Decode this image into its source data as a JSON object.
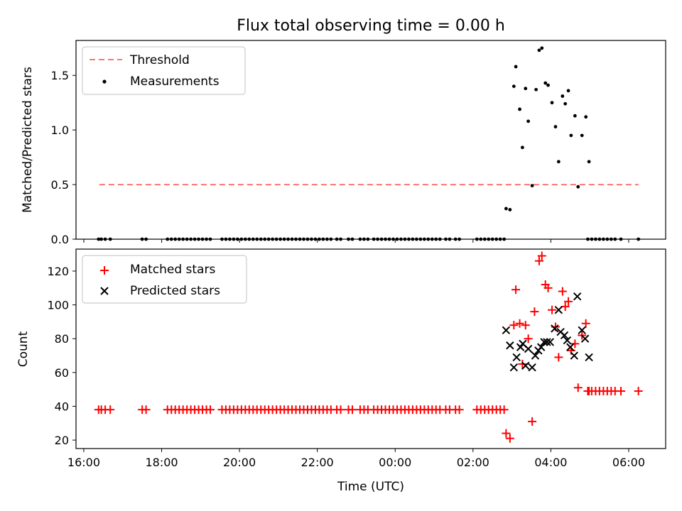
{
  "title": "Flux total observing time = 0.00 h",
  "xlabel": "Time (UTC)",
  "x_ticks": [
    "16:00",
    "18:00",
    "20:00",
    "22:00",
    "00:00",
    "02:00",
    "04:00",
    "06:00"
  ],
  "colors": {
    "threshold": "#ff7373",
    "measurement": "#000000",
    "matched": "#ff0000",
    "predicted": "#000000"
  },
  "chart_data": [
    {
      "type": "scatter",
      "panel": "top",
      "ylabel": "Matched/Predicted stars",
      "xlim_hours": [
        15.8,
        30.95
      ],
      "ylim": [
        0,
        1.82
      ],
      "y_ticks": [
        "0.0",
        "0.5",
        "1.0",
        "1.5"
      ],
      "legend": {
        "placement": "upper-left",
        "entries": [
          "Threshold",
          "Measurements"
        ]
      },
      "threshold": {
        "label": "Threshold",
        "value": 0.5,
        "x_start": 16.4,
        "x_end": 30.25
      },
      "zero_times": [
        16.38,
        16.45,
        16.55,
        16.68,
        17.5,
        17.6,
        18.15,
        18.25,
        18.35,
        18.45,
        18.55,
        18.65,
        18.75,
        18.85,
        18.95,
        19.05,
        19.15,
        19.25,
        19.55,
        19.65,
        19.75,
        19.85,
        19.95,
        20.05,
        20.15,
        20.25,
        20.35,
        20.45,
        20.55,
        20.65,
        20.75,
        20.85,
        20.95,
        21.05,
        21.15,
        21.25,
        21.35,
        21.45,
        21.55,
        21.65,
        21.75,
        21.85,
        21.95,
        22.05,
        22.15,
        22.25,
        22.35,
        22.5,
        22.6,
        22.8,
        22.9,
        23.1,
        23.2,
        23.3,
        23.45,
        23.55,
        23.65,
        23.75,
        23.85,
        23.95,
        24.05,
        24.15,
        24.25,
        24.35,
        24.45,
        24.55,
        24.65,
        24.75,
        24.85,
        24.95,
        25.05,
        25.15,
        25.3,
        25.4,
        25.55,
        25.65,
        26.1,
        26.2,
        26.3,
        26.4,
        26.5,
        26.6,
        26.7,
        26.8,
        28.95,
        29.05,
        29.15,
        29.25,
        29.35,
        29.45,
        29.55,
        29.65,
        29.8,
        30.25
      ],
      "measurements": [
        {
          "t": 26.85,
          "v": 0.28
        },
        {
          "t": 26.95,
          "v": 0.27
        },
        {
          "t": 27.05,
          "v": 1.4
        },
        {
          "t": 27.1,
          "v": 1.58
        },
        {
          "t": 27.2,
          "v": 1.19
        },
        {
          "t": 27.27,
          "v": 0.84
        },
        {
          "t": 27.35,
          "v": 1.38
        },
        {
          "t": 27.42,
          "v": 1.08
        },
        {
          "t": 27.52,
          "v": 0.49
        },
        {
          "t": 27.62,
          "v": 1.37
        },
        {
          "t": 27.7,
          "v": 1.73
        },
        {
          "t": 27.77,
          "v": 1.75
        },
        {
          "t": 27.86,
          "v": 1.43
        },
        {
          "t": 27.93,
          "v": 1.41
        },
        {
          "t": 28.03,
          "v": 1.25
        },
        {
          "t": 28.12,
          "v": 1.03
        },
        {
          "t": 28.2,
          "v": 0.71
        },
        {
          "t": 28.3,
          "v": 1.31
        },
        {
          "t": 28.37,
          "v": 1.24
        },
        {
          "t": 28.45,
          "v": 1.36
        },
        {
          "t": 28.52,
          "v": 0.95
        },
        {
          "t": 28.62,
          "v": 1.13
        },
        {
          "t": 28.7,
          "v": 0.48
        },
        {
          "t": 28.8,
          "v": 0.95
        },
        {
          "t": 28.9,
          "v": 1.12
        },
        {
          "t": 28.98,
          "v": 0.71
        }
      ]
    },
    {
      "type": "scatter",
      "panel": "bottom",
      "ylabel": "Count",
      "xlim_hours": [
        15.8,
        30.95
      ],
      "ylim": [
        15,
        133
      ],
      "y_ticks": [
        "20",
        "40",
        "60",
        "80",
        "100",
        "120"
      ],
      "legend": {
        "placement": "upper-left",
        "entries": [
          "Matched stars",
          "Predicted stars"
        ]
      },
      "baseline_count": 38,
      "baseline_times": [
        16.38,
        16.45,
        16.55,
        16.68,
        17.5,
        17.6,
        18.15,
        18.25,
        18.35,
        18.45,
        18.55,
        18.65,
        18.75,
        18.85,
        18.95,
        19.05,
        19.15,
        19.25,
        19.55,
        19.65,
        19.75,
        19.85,
        19.95,
        20.05,
        20.15,
        20.25,
        20.35,
        20.45,
        20.55,
        20.65,
        20.75,
        20.85,
        20.95,
        21.05,
        21.15,
        21.25,
        21.35,
        21.45,
        21.55,
        21.65,
        21.75,
        21.85,
        21.95,
        22.05,
        22.15,
        22.25,
        22.35,
        22.5,
        22.6,
        22.8,
        22.9,
        23.1,
        23.2,
        23.3,
        23.45,
        23.55,
        23.65,
        23.75,
        23.85,
        23.95,
        24.05,
        24.15,
        24.25,
        24.35,
        24.45,
        24.55,
        24.65,
        24.75,
        24.85,
        24.95,
        25.05,
        25.15,
        25.3,
        25.4,
        25.55,
        25.65,
        26.1,
        26.2,
        26.3,
        26.4,
        26.5,
        26.6,
        26.7,
        26.8
      ],
      "tail_count": 49,
      "tail_times": [
        28.95,
        29.05,
        29.15,
        29.25,
        29.35,
        29.45,
        29.55,
        29.65,
        29.8,
        30.25
      ],
      "matched": [
        {
          "t": 26.85,
          "v": 24
        },
        {
          "t": 26.95,
          "v": 21
        },
        {
          "t": 27.05,
          "v": 88
        },
        {
          "t": 27.1,
          "v": 109
        },
        {
          "t": 27.2,
          "v": 89
        },
        {
          "t": 27.27,
          "v": 65
        },
        {
          "t": 27.35,
          "v": 88
        },
        {
          "t": 27.42,
          "v": 80
        },
        {
          "t": 27.52,
          "v": 31
        },
        {
          "t": 27.58,
          "v": 96
        },
        {
          "t": 27.7,
          "v": 126
        },
        {
          "t": 27.77,
          "v": 129
        },
        {
          "t": 27.86,
          "v": 112
        },
        {
          "t": 27.93,
          "v": 110
        },
        {
          "t": 28.03,
          "v": 97
        },
        {
          "t": 28.12,
          "v": 87
        },
        {
          "t": 28.2,
          "v": 69
        },
        {
          "t": 28.3,
          "v": 108
        },
        {
          "t": 28.37,
          "v": 99
        },
        {
          "t": 28.45,
          "v": 102
        },
        {
          "t": 28.52,
          "v": 73
        },
        {
          "t": 28.62,
          "v": 77
        },
        {
          "t": 28.7,
          "v": 51
        },
        {
          "t": 28.8,
          "v": 82
        },
        {
          "t": 28.9,
          "v": 89
        },
        {
          "t": 28.98,
          "v": 49
        }
      ],
      "predicted": [
        {
          "t": 26.85,
          "v": 85
        },
        {
          "t": 26.95,
          "v": 76
        },
        {
          "t": 27.05,
          "v": 63
        },
        {
          "t": 27.12,
          "v": 69
        },
        {
          "t": 27.22,
          "v": 75
        },
        {
          "t": 27.28,
          "v": 77
        },
        {
          "t": 27.35,
          "v": 64
        },
        {
          "t": 27.42,
          "v": 74
        },
        {
          "t": 27.52,
          "v": 63
        },
        {
          "t": 27.6,
          "v": 70
        },
        {
          "t": 27.68,
          "v": 73
        },
        {
          "t": 27.75,
          "v": 75
        },
        {
          "t": 27.83,
          "v": 78
        },
        {
          "t": 27.9,
          "v": 78
        },
        {
          "t": 27.98,
          "v": 78
        },
        {
          "t": 28.1,
          "v": 86
        },
        {
          "t": 28.2,
          "v": 97
        },
        {
          "t": 28.25,
          "v": 84
        },
        {
          "t": 28.35,
          "v": 82
        },
        {
          "t": 28.42,
          "v": 79
        },
        {
          "t": 28.5,
          "v": 75
        },
        {
          "t": 28.6,
          "v": 70
        },
        {
          "t": 28.68,
          "v": 105
        },
        {
          "t": 28.8,
          "v": 85
        },
        {
          "t": 28.88,
          "v": 80
        },
        {
          "t": 28.98,
          "v": 69
        }
      ]
    }
  ]
}
